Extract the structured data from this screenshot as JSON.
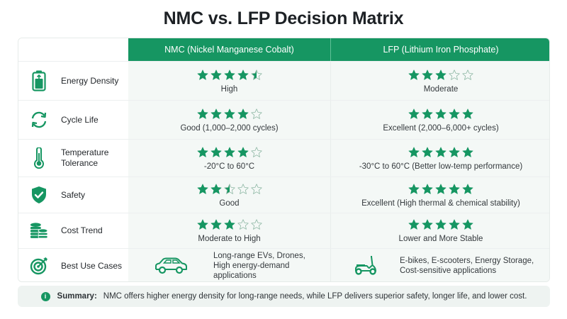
{
  "title": "NMC vs. LFP Decision Matrix",
  "colors": {
    "accent": "#169662",
    "header_text": "#ffffff",
    "cell_bg": "#f4f8f6",
    "summary_bg": "#eef3f1"
  },
  "columns": [
    {
      "key": "nmc",
      "label": "NMC (Nickel Manganese Cobalt)"
    },
    {
      "key": "lfp",
      "label": "LFP (Lithium Iron Phosphate)"
    }
  ],
  "rows": [
    {
      "label": "Energy Density",
      "icon": "battery-icon",
      "nmc": {
        "rating": 4.5,
        "text": "High"
      },
      "lfp": {
        "rating": 3,
        "text": "Moderate"
      }
    },
    {
      "label": "Cycle Life",
      "icon": "cycle-arrows-icon",
      "nmc": {
        "rating": 4,
        "text": "Good (1,000–2,000 cycles)"
      },
      "lfp": {
        "rating": 5,
        "text": "Excellent (2,000–6,000+ cycles)"
      }
    },
    {
      "label": "Temperature Tolerance",
      "label_lines": [
        "Temperature",
        "Tolerance"
      ],
      "icon": "thermometer-icon",
      "nmc": {
        "rating": 4,
        "text": "-20°C to 60°C"
      },
      "lfp": {
        "rating": 5,
        "text": "-30°C to 60°C (Better low-temp performance)"
      }
    },
    {
      "label": "Safety",
      "icon": "shield-check-icon",
      "nmc": {
        "rating": 2.5,
        "text": "Good"
      },
      "lfp": {
        "rating": 5,
        "text": "Excellent (High thermal & chemical stability)"
      }
    },
    {
      "label": "Cost Trend",
      "icon": "coins-stack-icon",
      "nmc": {
        "rating": 3,
        "text": "Moderate to High"
      },
      "lfp": {
        "rating": 5,
        "text": "Lower and More Stable"
      }
    },
    {
      "label": "Best Use Cases",
      "icon": "target-icon",
      "nmc": {
        "icon": "car-icon",
        "lines": [
          "Long-range EVs, Drones,",
          "High energy-demand",
          "applications"
        ]
      },
      "lfp": {
        "icon": "scooter-icon",
        "lines": [
          "E-bikes, E-scooters, Energy Storage,",
          "Cost-sensitive applications"
        ]
      }
    }
  ],
  "summary": {
    "icon": "info-icon",
    "label": "Summary:",
    "text": "NMC offers higher energy density for long-range needs, while LFP delivers superior safety, longer life, and lower cost."
  }
}
